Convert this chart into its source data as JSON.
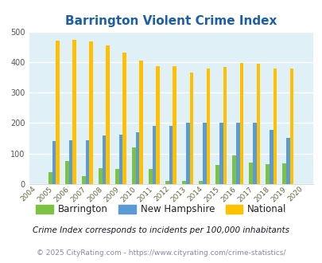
{
  "title": "Barrington Violent Crime Index",
  "years": [
    "2004",
    "2005",
    "2006",
    "2007",
    "2008",
    "2009",
    "2010",
    "2011",
    "2012",
    "2013",
    "2014",
    "2015",
    "2016",
    "2017",
    "2018",
    "2019",
    "2020"
  ],
  "barrington": [
    null,
    40,
    75,
    25,
    52,
    50,
    120,
    50,
    10,
    10,
    10,
    62,
    95,
    70,
    65,
    67,
    null
  ],
  "new_hampshire": [
    null,
    140,
    143,
    143,
    160,
    163,
    170,
    190,
    190,
    202,
    200,
    202,
    200,
    202,
    177,
    152,
    null
  ],
  "national": [
    null,
    469,
    472,
    467,
    455,
    432,
    405,
    387,
    387,
    367,
    378,
    383,
    398,
    394,
    380,
    380,
    null
  ],
  "bar_width": 0.22,
  "ylim": [
    0,
    500
  ],
  "yticks": [
    0,
    100,
    200,
    300,
    400,
    500
  ],
  "color_barrington": "#7dc242",
  "color_nh": "#5b9bd5",
  "color_national": "#ffc000",
  "plot_bg": "#dff0f7",
  "title_color": "#1a5fa8",
  "title_fontsize": 11,
  "legend_label_barrington": "Barrington",
  "legend_label_nh": "New Hampshire",
  "legend_label_national": "National",
  "footnote1": "Crime Index corresponds to incidents per 100,000 inhabitants",
  "footnote2": "© 2025 CityRating.com - https://www.cityrating.com/crime-statistics/",
  "footnote1_color": "#1a1a2e",
  "footnote2_color": "#8888aa"
}
